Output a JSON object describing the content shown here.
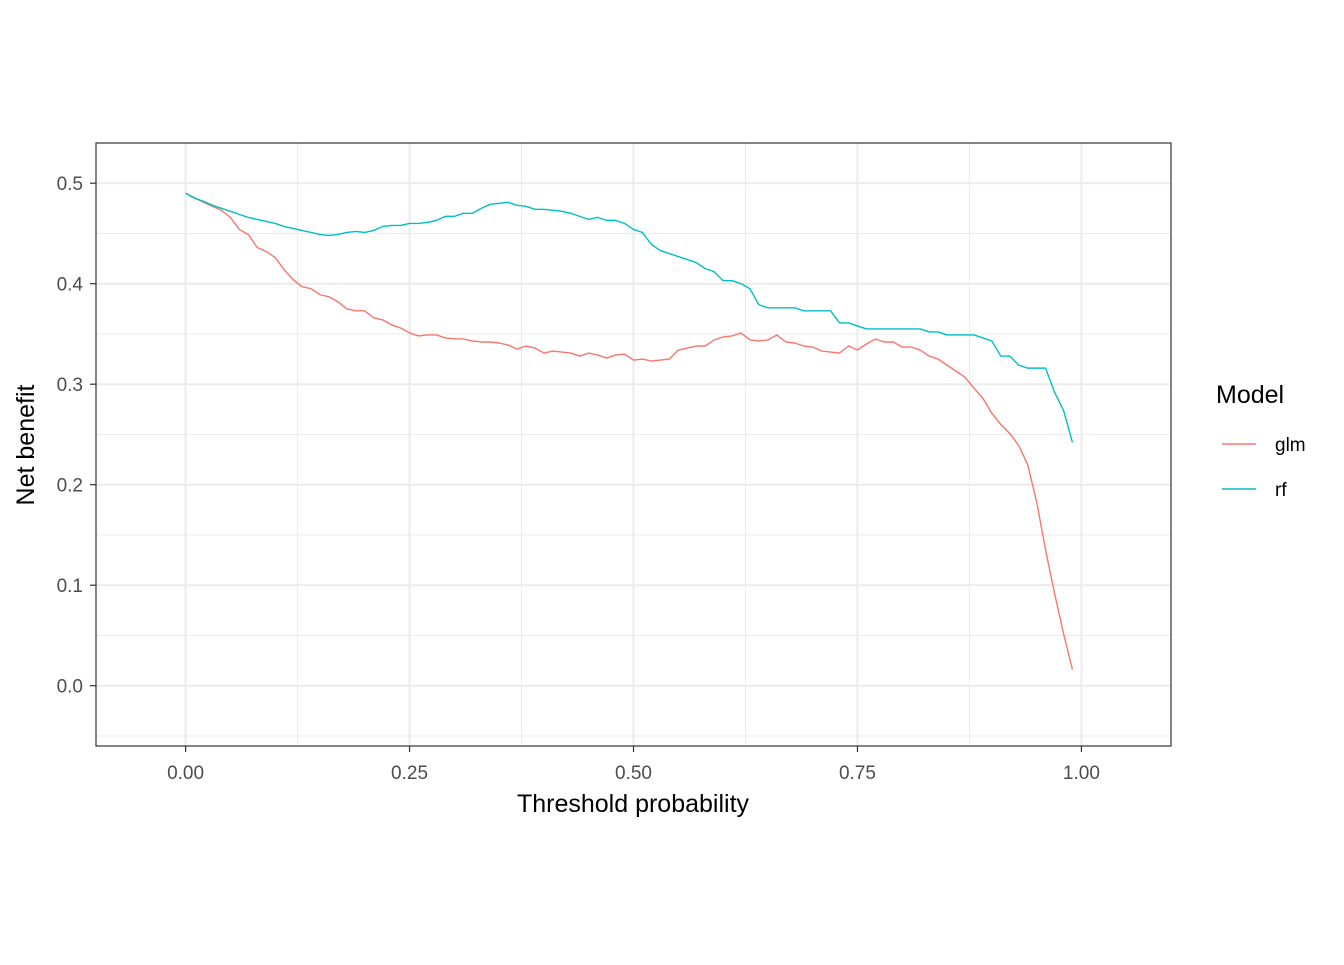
{
  "chart_data": {
    "type": "line",
    "title": "",
    "xlabel": "Threshold probability",
    "ylabel": "Net benefit",
    "xlim": [
      -0.1,
      1.1
    ],
    "ylim": [
      -0.06,
      0.54
    ],
    "x_ticks": [
      0.0,
      0.25,
      0.5,
      0.75,
      1.0
    ],
    "x_tick_labels": [
      "0.00",
      "0.25",
      "0.50",
      "0.75",
      "1.00"
    ],
    "y_ticks": [
      0.0,
      0.1,
      0.2,
      0.3,
      0.4,
      0.5
    ],
    "y_tick_labels": [
      "0.0",
      "0.1",
      "0.2",
      "0.3",
      "0.4",
      "0.5"
    ],
    "grid": true,
    "legend": {
      "title": "Model",
      "position": "right"
    },
    "series": [
      {
        "name": "glm",
        "color": "#F8766D",
        "points": [
          [
            0.0,
            0.49
          ],
          [
            0.02,
            0.481
          ],
          [
            0.04,
            0.473
          ],
          [
            0.05,
            0.466
          ],
          [
            0.06,
            0.454
          ],
          [
            0.07,
            0.449
          ],
          [
            0.08,
            0.436
          ],
          [
            0.09,
            0.432
          ],
          [
            0.1,
            0.426
          ],
          [
            0.11,
            0.414
          ],
          [
            0.12,
            0.404
          ],
          [
            0.13,
            0.397
          ],
          [
            0.14,
            0.395
          ],
          [
            0.15,
            0.389
          ],
          [
            0.16,
            0.387
          ],
          [
            0.17,
            0.382
          ],
          [
            0.18,
            0.375
          ],
          [
            0.19,
            0.373
          ],
          [
            0.2,
            0.373
          ],
          [
            0.21,
            0.366
          ],
          [
            0.22,
            0.364
          ],
          [
            0.23,
            0.359
          ],
          [
            0.24,
            0.356
          ],
          [
            0.25,
            0.351
          ],
          [
            0.26,
            0.348
          ],
          [
            0.27,
            0.349
          ],
          [
            0.28,
            0.349
          ],
          [
            0.29,
            0.346
          ],
          [
            0.3,
            0.345
          ],
          [
            0.31,
            0.345
          ],
          [
            0.32,
            0.343
          ],
          [
            0.33,
            0.342
          ],
          [
            0.34,
            0.342
          ],
          [
            0.35,
            0.341
          ],
          [
            0.36,
            0.339
          ],
          [
            0.37,
            0.335
          ],
          [
            0.38,
            0.338
          ],
          [
            0.39,
            0.336
          ],
          [
            0.4,
            0.331
          ],
          [
            0.41,
            0.333
          ],
          [
            0.42,
            0.332
          ],
          [
            0.43,
            0.331
          ],
          [
            0.44,
            0.328
          ],
          [
            0.45,
            0.331
          ],
          [
            0.46,
            0.329
          ],
          [
            0.47,
            0.326
          ],
          [
            0.48,
            0.329
          ],
          [
            0.49,
            0.33
          ],
          [
            0.5,
            0.324
          ],
          [
            0.51,
            0.325
          ],
          [
            0.52,
            0.323
          ],
          [
            0.53,
            0.324
          ],
          [
            0.54,
            0.325
          ],
          [
            0.55,
            0.334
          ],
          [
            0.56,
            0.336
          ],
          [
            0.57,
            0.338
          ],
          [
            0.58,
            0.338
          ],
          [
            0.59,
            0.344
          ],
          [
            0.6,
            0.347
          ],
          [
            0.61,
            0.348
          ],
          [
            0.62,
            0.351
          ],
          [
            0.63,
            0.344
          ],
          [
            0.64,
            0.343
          ],
          [
            0.65,
            0.344
          ],
          [
            0.66,
            0.349
          ],
          [
            0.67,
            0.342
          ],
          [
            0.68,
            0.341
          ],
          [
            0.69,
            0.338
          ],
          [
            0.7,
            0.337
          ],
          [
            0.71,
            0.333
          ],
          [
            0.72,
            0.332
          ],
          [
            0.73,
            0.331
          ],
          [
            0.74,
            0.338
          ],
          [
            0.75,
            0.334
          ],
          [
            0.76,
            0.34
          ],
          [
            0.77,
            0.345
          ],
          [
            0.78,
            0.342
          ],
          [
            0.79,
            0.342
          ],
          [
            0.8,
            0.337
          ],
          [
            0.81,
            0.337
          ],
          [
            0.82,
            0.334
          ],
          [
            0.83,
            0.328
          ],
          [
            0.84,
            0.325
          ],
          [
            0.85,
            0.319
          ],
          [
            0.86,
            0.313
          ],
          [
            0.87,
            0.307
          ],
          [
            0.88,
            0.296
          ],
          [
            0.89,
            0.286
          ],
          [
            0.9,
            0.271
          ],
          [
            0.91,
            0.26
          ],
          [
            0.92,
            0.251
          ],
          [
            0.93,
            0.239
          ],
          [
            0.94,
            0.22
          ],
          [
            0.95,
            0.183
          ],
          [
            0.96,
            0.135
          ],
          [
            0.97,
            0.092
          ],
          [
            0.98,
            0.052
          ],
          [
            0.99,
            0.016
          ]
        ]
      },
      {
        "name": "rf",
        "color": "#00BFC4",
        "points": [
          [
            0.0,
            0.49
          ],
          [
            0.01,
            0.485
          ],
          [
            0.02,
            0.482
          ],
          [
            0.03,
            0.478
          ],
          [
            0.04,
            0.475
          ],
          [
            0.05,
            0.472
          ],
          [
            0.06,
            0.469
          ],
          [
            0.07,
            0.466
          ],
          [
            0.08,
            0.464
          ],
          [
            0.09,
            0.462
          ],
          [
            0.1,
            0.46
          ],
          [
            0.11,
            0.457
          ],
          [
            0.12,
            0.455
          ],
          [
            0.13,
            0.453
          ],
          [
            0.14,
            0.451
          ],
          [
            0.15,
            0.449
          ],
          [
            0.16,
            0.448
          ],
          [
            0.17,
            0.449
          ],
          [
            0.18,
            0.451
          ],
          [
            0.19,
            0.452
          ],
          [
            0.2,
            0.451
          ],
          [
            0.21,
            0.453
          ],
          [
            0.22,
            0.457
          ],
          [
            0.23,
            0.458
          ],
          [
            0.24,
            0.458
          ],
          [
            0.25,
            0.46
          ],
          [
            0.26,
            0.46
          ],
          [
            0.27,
            0.461
          ],
          [
            0.28,
            0.463
          ],
          [
            0.29,
            0.467
          ],
          [
            0.3,
            0.467
          ],
          [
            0.31,
            0.47
          ],
          [
            0.32,
            0.47
          ],
          [
            0.33,
            0.475
          ],
          [
            0.34,
            0.479
          ],
          [
            0.35,
            0.48
          ],
          [
            0.36,
            0.481
          ],
          [
            0.37,
            0.478
          ],
          [
            0.38,
            0.477
          ],
          [
            0.39,
            0.474
          ],
          [
            0.4,
            0.474
          ],
          [
            0.41,
            0.473
          ],
          [
            0.42,
            0.472
          ],
          [
            0.43,
            0.47
          ],
          [
            0.44,
            0.467
          ],
          [
            0.45,
            0.464
          ],
          [
            0.46,
            0.466
          ],
          [
            0.47,
            0.463
          ],
          [
            0.48,
            0.463
          ],
          [
            0.49,
            0.46
          ],
          [
            0.5,
            0.454
          ],
          [
            0.51,
            0.451
          ],
          [
            0.52,
            0.439
          ],
          [
            0.53,
            0.433
          ],
          [
            0.54,
            0.43
          ],
          [
            0.55,
            0.427
          ],
          [
            0.56,
            0.424
          ],
          [
            0.57,
            0.421
          ],
          [
            0.58,
            0.415
          ],
          [
            0.59,
            0.412
          ],
          [
            0.6,
            0.403
          ],
          [
            0.61,
            0.403
          ],
          [
            0.62,
            0.4
          ],
          [
            0.63,
            0.395
          ],
          [
            0.64,
            0.379
          ],
          [
            0.65,
            0.376
          ],
          [
            0.66,
            0.376
          ],
          [
            0.67,
            0.376
          ],
          [
            0.68,
            0.376
          ],
          [
            0.69,
            0.373
          ],
          [
            0.7,
            0.373
          ],
          [
            0.71,
            0.373
          ],
          [
            0.72,
            0.373
          ],
          [
            0.73,
            0.361
          ],
          [
            0.74,
            0.361
          ],
          [
            0.75,
            0.358
          ],
          [
            0.76,
            0.355
          ],
          [
            0.77,
            0.355
          ],
          [
            0.78,
            0.355
          ],
          [
            0.79,
            0.355
          ],
          [
            0.8,
            0.355
          ],
          [
            0.81,
            0.355
          ],
          [
            0.82,
            0.355
          ],
          [
            0.83,
            0.352
          ],
          [
            0.84,
            0.352
          ],
          [
            0.85,
            0.349
          ],
          [
            0.86,
            0.349
          ],
          [
            0.87,
            0.349
          ],
          [
            0.88,
            0.349
          ],
          [
            0.89,
            0.346
          ],
          [
            0.9,
            0.343
          ],
          [
            0.91,
            0.328
          ],
          [
            0.92,
            0.328
          ],
          [
            0.93,
            0.319
          ],
          [
            0.94,
            0.316
          ],
          [
            0.95,
            0.316
          ],
          [
            0.96,
            0.316
          ],
          [
            0.97,
            0.292
          ],
          [
            0.98,
            0.274
          ],
          [
            0.99,
            0.242
          ]
        ]
      }
    ]
  }
}
